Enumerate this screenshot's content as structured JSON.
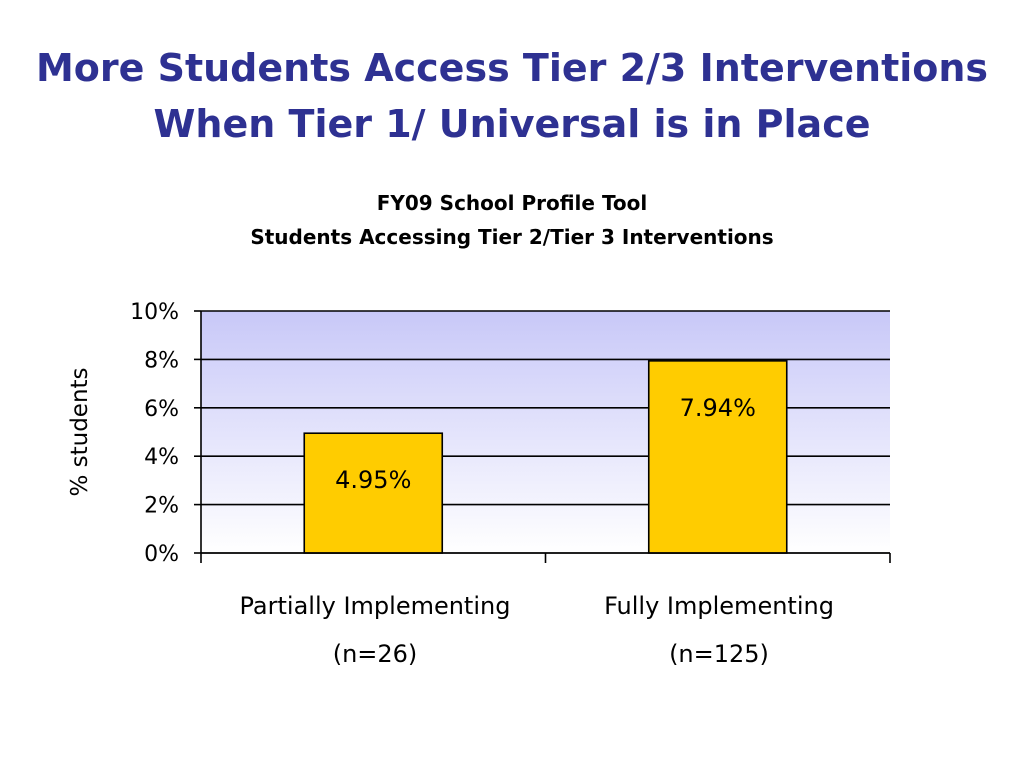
{
  "slide": {
    "title_line1": "More Students Access Tier 2/3 Interventions",
    "title_line2": "When Tier 1/ Universal is in Place"
  },
  "chart_data": {
    "type": "bar",
    "title": "FY09 School Profile Tool",
    "subtitle": "Students Accessing Tier 2/Tier 3 Interventions",
    "ylabel": "% students",
    "xlabel": "",
    "categories": [
      "Partially Implementing",
      "Fully Implementing"
    ],
    "category_notes": [
      "(n=26)",
      "(n=125)"
    ],
    "values": [
      4.95,
      7.94
    ],
    "data_labels": [
      "4.95%",
      "7.94%"
    ],
    "ylim": [
      0,
      10
    ],
    "yticks": [
      0,
      2,
      4,
      6,
      8,
      10
    ],
    "ytick_labels": [
      "0%",
      "2%",
      "4%",
      "6%",
      "8%",
      "10%"
    ],
    "grid": true,
    "legend": "none",
    "colors": {
      "bar_fill": "#ffcc00",
      "bar_stroke": "#000000",
      "plot_gradient_top": "#c8c8f8",
      "plot_gradient_bottom": "#ffffff",
      "title": "#2e3192"
    }
  }
}
